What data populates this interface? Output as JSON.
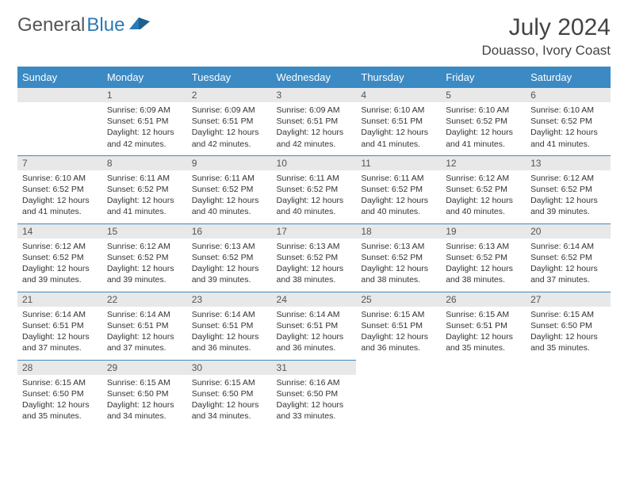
{
  "brand": {
    "part1": "General",
    "part2": "Blue"
  },
  "colors": {
    "header_bg": "#3b8ac4",
    "header_text": "#ffffff",
    "daynum_bg": "#e8e8e8",
    "border": "#3b8ac4",
    "text": "#333333",
    "brand_gray": "#555555",
    "brand_blue": "#2a7ab8"
  },
  "title": "July 2024",
  "location": "Douasso, Ivory Coast",
  "daysOfWeek": [
    "Sunday",
    "Monday",
    "Tuesday",
    "Wednesday",
    "Thursday",
    "Friday",
    "Saturday"
  ],
  "weeks": [
    [
      {
        "n": "",
        "sr": "",
        "ss": "",
        "dl": ""
      },
      {
        "n": "1",
        "sr": "6:09 AM",
        "ss": "6:51 PM",
        "dl": "12 hours and 42 minutes."
      },
      {
        "n": "2",
        "sr": "6:09 AM",
        "ss": "6:51 PM",
        "dl": "12 hours and 42 minutes."
      },
      {
        "n": "3",
        "sr": "6:09 AM",
        "ss": "6:51 PM",
        "dl": "12 hours and 42 minutes."
      },
      {
        "n": "4",
        "sr": "6:10 AM",
        "ss": "6:51 PM",
        "dl": "12 hours and 41 minutes."
      },
      {
        "n": "5",
        "sr": "6:10 AM",
        "ss": "6:52 PM",
        "dl": "12 hours and 41 minutes."
      },
      {
        "n": "6",
        "sr": "6:10 AM",
        "ss": "6:52 PM",
        "dl": "12 hours and 41 minutes."
      }
    ],
    [
      {
        "n": "7",
        "sr": "6:10 AM",
        "ss": "6:52 PM",
        "dl": "12 hours and 41 minutes."
      },
      {
        "n": "8",
        "sr": "6:11 AM",
        "ss": "6:52 PM",
        "dl": "12 hours and 41 minutes."
      },
      {
        "n": "9",
        "sr": "6:11 AM",
        "ss": "6:52 PM",
        "dl": "12 hours and 40 minutes."
      },
      {
        "n": "10",
        "sr": "6:11 AM",
        "ss": "6:52 PM",
        "dl": "12 hours and 40 minutes."
      },
      {
        "n": "11",
        "sr": "6:11 AM",
        "ss": "6:52 PM",
        "dl": "12 hours and 40 minutes."
      },
      {
        "n": "12",
        "sr": "6:12 AM",
        "ss": "6:52 PM",
        "dl": "12 hours and 40 minutes."
      },
      {
        "n": "13",
        "sr": "6:12 AM",
        "ss": "6:52 PM",
        "dl": "12 hours and 39 minutes."
      }
    ],
    [
      {
        "n": "14",
        "sr": "6:12 AM",
        "ss": "6:52 PM",
        "dl": "12 hours and 39 minutes."
      },
      {
        "n": "15",
        "sr": "6:12 AM",
        "ss": "6:52 PM",
        "dl": "12 hours and 39 minutes."
      },
      {
        "n": "16",
        "sr": "6:13 AM",
        "ss": "6:52 PM",
        "dl": "12 hours and 39 minutes."
      },
      {
        "n": "17",
        "sr": "6:13 AM",
        "ss": "6:52 PM",
        "dl": "12 hours and 38 minutes."
      },
      {
        "n": "18",
        "sr": "6:13 AM",
        "ss": "6:52 PM",
        "dl": "12 hours and 38 minutes."
      },
      {
        "n": "19",
        "sr": "6:13 AM",
        "ss": "6:52 PM",
        "dl": "12 hours and 38 minutes."
      },
      {
        "n": "20",
        "sr": "6:14 AM",
        "ss": "6:52 PM",
        "dl": "12 hours and 37 minutes."
      }
    ],
    [
      {
        "n": "21",
        "sr": "6:14 AM",
        "ss": "6:51 PM",
        "dl": "12 hours and 37 minutes."
      },
      {
        "n": "22",
        "sr": "6:14 AM",
        "ss": "6:51 PM",
        "dl": "12 hours and 37 minutes."
      },
      {
        "n": "23",
        "sr": "6:14 AM",
        "ss": "6:51 PM",
        "dl": "12 hours and 36 minutes."
      },
      {
        "n": "24",
        "sr": "6:14 AM",
        "ss": "6:51 PM",
        "dl": "12 hours and 36 minutes."
      },
      {
        "n": "25",
        "sr": "6:15 AM",
        "ss": "6:51 PM",
        "dl": "12 hours and 36 minutes."
      },
      {
        "n": "26",
        "sr": "6:15 AM",
        "ss": "6:51 PM",
        "dl": "12 hours and 35 minutes."
      },
      {
        "n": "27",
        "sr": "6:15 AM",
        "ss": "6:50 PM",
        "dl": "12 hours and 35 minutes."
      }
    ],
    [
      {
        "n": "28",
        "sr": "6:15 AM",
        "ss": "6:50 PM",
        "dl": "12 hours and 35 minutes."
      },
      {
        "n": "29",
        "sr": "6:15 AM",
        "ss": "6:50 PM",
        "dl": "12 hours and 34 minutes."
      },
      {
        "n": "30",
        "sr": "6:15 AM",
        "ss": "6:50 PM",
        "dl": "12 hours and 34 minutes."
      },
      {
        "n": "31",
        "sr": "6:16 AM",
        "ss": "6:50 PM",
        "dl": "12 hours and 33 minutes."
      },
      {
        "n": "",
        "sr": "",
        "ss": "",
        "dl": ""
      },
      {
        "n": "",
        "sr": "",
        "ss": "",
        "dl": ""
      },
      {
        "n": "",
        "sr": "",
        "ss": "",
        "dl": ""
      }
    ]
  ],
  "labels": {
    "sunrise": "Sunrise:",
    "sunset": "Sunset:",
    "daylight": "Daylight:"
  }
}
